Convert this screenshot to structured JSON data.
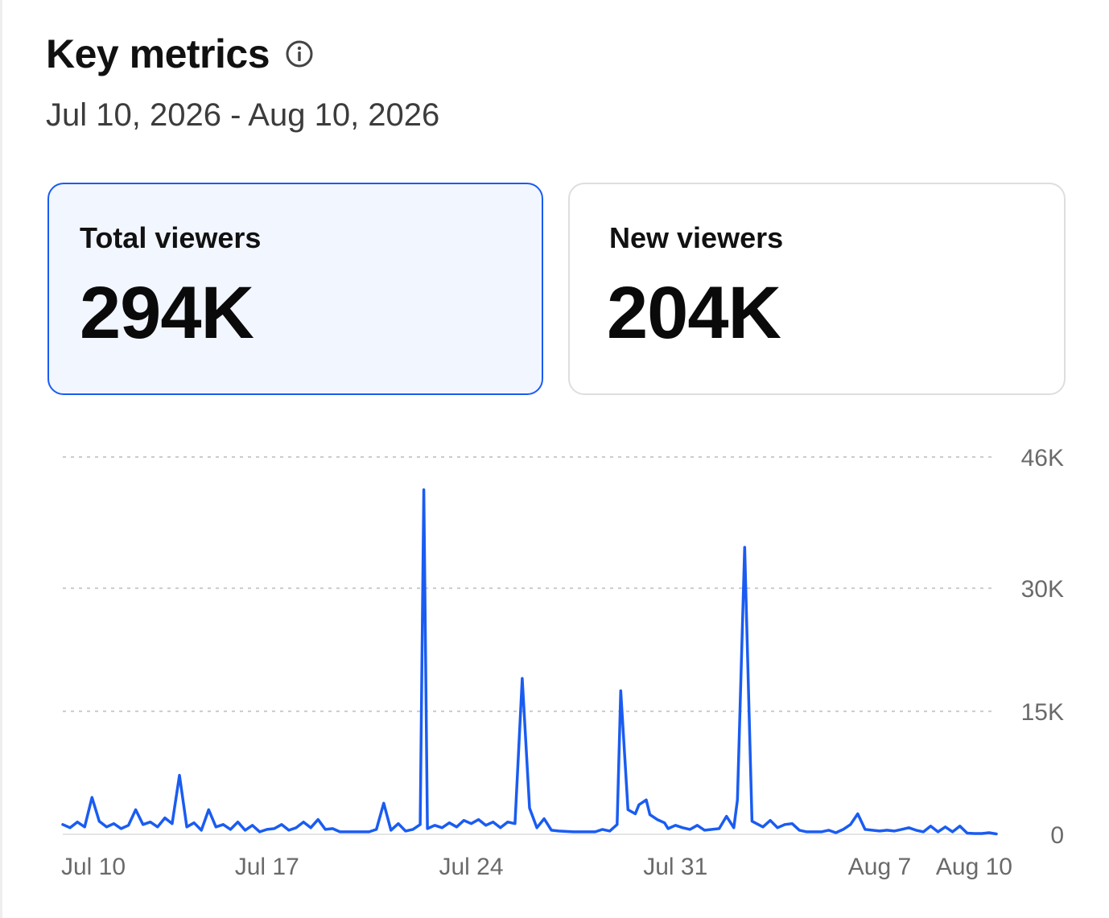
{
  "header": {
    "title": "Key metrics",
    "info_icon": "info-circle-icon",
    "date_range": "Jul 10, 2026 - Aug 10, 2026"
  },
  "cards": [
    {
      "label": "Total viewers",
      "value": "294K",
      "selected": true
    },
    {
      "label": "New viewers",
      "value": "204K",
      "selected": false
    }
  ],
  "colors": {
    "accent": "#1a5cf2",
    "selected_card_bg": "#f2f6fe",
    "gridline": "#cccccc",
    "tick_text": "#6a6a6a"
  },
  "chart_data": {
    "type": "line",
    "title": "",
    "xlabel": "",
    "ylabel": "",
    "x_range": [
      "2026-07-10",
      "2026-08-10"
    ],
    "ylim": [
      0,
      46000
    ],
    "y_ticks": [
      {
        "value": 0,
        "label": "0"
      },
      {
        "value": 15000,
        "label": "15K"
      },
      {
        "value": 30000,
        "label": "30K"
      },
      {
        "value": 46000,
        "label": "46K"
      }
    ],
    "x_ticks": [
      {
        "date": "2026-07-10",
        "label": "Jul 10"
      },
      {
        "date": "2026-07-17",
        "label": "Jul 17"
      },
      {
        "date": "2026-07-24",
        "label": "Jul 24"
      },
      {
        "date": "2026-07-31",
        "label": "Jul 31"
      },
      {
        "date": "2026-08-07",
        "label": "Aug 7"
      },
      {
        "date": "2026-08-10",
        "label": "Aug 10"
      }
    ],
    "grid": true,
    "y_axis_position": "right",
    "series": [
      {
        "name": "",
        "color": "#1a5cf2",
        "points": [
          [
            "2026-07-10T00:00",
            1200
          ],
          [
            "2026-07-10T06:00",
            800
          ],
          [
            "2026-07-10T12:00",
            1500
          ],
          [
            "2026-07-10T18:00",
            900
          ],
          [
            "2026-07-11T00:00",
            4500
          ],
          [
            "2026-07-11T06:00",
            1600
          ],
          [
            "2026-07-11T12:00",
            900
          ],
          [
            "2026-07-11T18:00",
            1300
          ],
          [
            "2026-07-12T00:00",
            700
          ],
          [
            "2026-07-12T06:00",
            1100
          ],
          [
            "2026-07-12T12:00",
            3000
          ],
          [
            "2026-07-12T18:00",
            1200
          ],
          [
            "2026-07-13T00:00",
            1500
          ],
          [
            "2026-07-13T06:00",
            900
          ],
          [
            "2026-07-13T12:00",
            2000
          ],
          [
            "2026-07-13T18:00",
            1300
          ],
          [
            "2026-07-14T00:00",
            7200
          ],
          [
            "2026-07-14T06:00",
            900
          ],
          [
            "2026-07-14T12:00",
            1400
          ],
          [
            "2026-07-14T18:00",
            500
          ],
          [
            "2026-07-15T00:00",
            3000
          ],
          [
            "2026-07-15T06:00",
            900
          ],
          [
            "2026-07-15T12:00",
            1200
          ],
          [
            "2026-07-15T18:00",
            600
          ],
          [
            "2026-07-16T00:00",
            1500
          ],
          [
            "2026-07-16T06:00",
            500
          ],
          [
            "2026-07-16T12:00",
            1100
          ],
          [
            "2026-07-16T18:00",
            300
          ],
          [
            "2026-07-17T00:00",
            600
          ],
          [
            "2026-07-17T06:00",
            700
          ],
          [
            "2026-07-17T12:00",
            1200
          ],
          [
            "2026-07-17T18:00",
            500
          ],
          [
            "2026-07-18T00:00",
            800
          ],
          [
            "2026-07-18T06:00",
            1500
          ],
          [
            "2026-07-18T12:00",
            800
          ],
          [
            "2026-07-18T18:00",
            1800
          ],
          [
            "2026-07-19T00:00",
            600
          ],
          [
            "2026-07-19T06:00",
            700
          ],
          [
            "2026-07-19T12:00",
            300
          ],
          [
            "2026-07-19T18:00",
            300
          ],
          [
            "2026-07-20T00:00",
            300
          ],
          [
            "2026-07-20T06:00",
            300
          ],
          [
            "2026-07-20T12:00",
            300
          ],
          [
            "2026-07-20T18:00",
            600
          ],
          [
            "2026-07-21T00:00",
            3800
          ],
          [
            "2026-07-21T06:00",
            500
          ],
          [
            "2026-07-21T12:00",
            1300
          ],
          [
            "2026-07-21T18:00",
            400
          ],
          [
            "2026-07-22T00:00",
            600
          ],
          [
            "2026-07-22T06:00",
            1200
          ],
          [
            "2026-07-22T09:00",
            42000
          ],
          [
            "2026-07-22T12:00",
            700
          ],
          [
            "2026-07-22T18:00",
            1100
          ],
          [
            "2026-07-23T00:00",
            800
          ],
          [
            "2026-07-23T06:00",
            1400
          ],
          [
            "2026-07-23T12:00",
            900
          ],
          [
            "2026-07-23T18:00",
            1700
          ],
          [
            "2026-07-24T00:00",
            1300
          ],
          [
            "2026-07-24T06:00",
            1800
          ],
          [
            "2026-07-24T12:00",
            1100
          ],
          [
            "2026-07-24T18:00",
            1500
          ],
          [
            "2026-07-25T00:00",
            800
          ],
          [
            "2026-07-25T06:00",
            1500
          ],
          [
            "2026-07-25T12:00",
            1300
          ],
          [
            "2026-07-25T18:00",
            19000
          ],
          [
            "2026-07-26T00:00",
            3200
          ],
          [
            "2026-07-26T06:00",
            800
          ],
          [
            "2026-07-26T12:00",
            1900
          ],
          [
            "2026-07-26T18:00",
            500
          ],
          [
            "2026-07-27T00:00",
            400
          ],
          [
            "2026-07-27T12:00",
            300
          ],
          [
            "2026-07-28T00:00",
            300
          ],
          [
            "2026-07-28T06:00",
            300
          ],
          [
            "2026-07-28T12:00",
            600
          ],
          [
            "2026-07-28T18:00",
            400
          ],
          [
            "2026-07-29T00:00",
            1200
          ],
          [
            "2026-07-29T03:00",
            17500
          ],
          [
            "2026-07-29T09:00",
            3000
          ],
          [
            "2026-07-29T15:00",
            2500
          ],
          [
            "2026-07-29T18:00",
            3600
          ],
          [
            "2026-07-30T00:00",
            4200
          ],
          [
            "2026-07-30T03:00",
            2400
          ],
          [
            "2026-07-30T09:00",
            1800
          ],
          [
            "2026-07-30T15:00",
            1400
          ],
          [
            "2026-07-30T18:00",
            700
          ],
          [
            "2026-07-31T00:00",
            1100
          ],
          [
            "2026-07-31T06:00",
            800
          ],
          [
            "2026-07-31T12:00",
            600
          ],
          [
            "2026-07-31T18:00",
            1100
          ],
          [
            "2026-08-01T00:00",
            500
          ],
          [
            "2026-08-01T06:00",
            600
          ],
          [
            "2026-08-01T12:00",
            700
          ],
          [
            "2026-08-01T18:00",
            2200
          ],
          [
            "2026-08-02T00:00",
            800
          ],
          [
            "2026-08-02T03:00",
            4200
          ],
          [
            "2026-08-02T09:00",
            35000
          ],
          [
            "2026-08-02T15:00",
            1600
          ],
          [
            "2026-08-03T00:00",
            900
          ],
          [
            "2026-08-03T06:00",
            1700
          ],
          [
            "2026-08-03T12:00",
            800
          ],
          [
            "2026-08-03T18:00",
            1200
          ],
          [
            "2026-08-04T00:00",
            1300
          ],
          [
            "2026-08-04T06:00",
            500
          ],
          [
            "2026-08-04T12:00",
            300
          ],
          [
            "2026-08-04T18:00",
            300
          ],
          [
            "2026-08-05T00:00",
            300
          ],
          [
            "2026-08-05T06:00",
            500
          ],
          [
            "2026-08-05T12:00",
            200
          ],
          [
            "2026-08-05T18:00",
            600
          ],
          [
            "2026-08-06T00:00",
            1200
          ],
          [
            "2026-08-06T06:00",
            2500
          ],
          [
            "2026-08-06T12:00",
            600
          ],
          [
            "2026-08-06T18:00",
            500
          ],
          [
            "2026-08-07T00:00",
            400
          ],
          [
            "2026-08-07T06:00",
            500
          ],
          [
            "2026-08-07T12:00",
            400
          ],
          [
            "2026-08-07T18:00",
            600
          ],
          [
            "2026-08-08T00:00",
            800
          ],
          [
            "2026-08-08T06:00",
            500
          ],
          [
            "2026-08-08T12:00",
            300
          ],
          [
            "2026-08-08T18:00",
            1000
          ],
          [
            "2026-08-09T00:00",
            300
          ],
          [
            "2026-08-09T06:00",
            900
          ],
          [
            "2026-08-09T12:00",
            300
          ],
          [
            "2026-08-09T18:00",
            1000
          ],
          [
            "2026-08-10T00:00",
            150
          ],
          [
            "2026-08-10T06:00",
            100
          ],
          [
            "2026-08-10T12:00",
            100
          ],
          [
            "2026-08-10T18:00",
            200
          ],
          [
            "2026-08-11T00:00",
            50
          ]
        ]
      }
    ]
  }
}
